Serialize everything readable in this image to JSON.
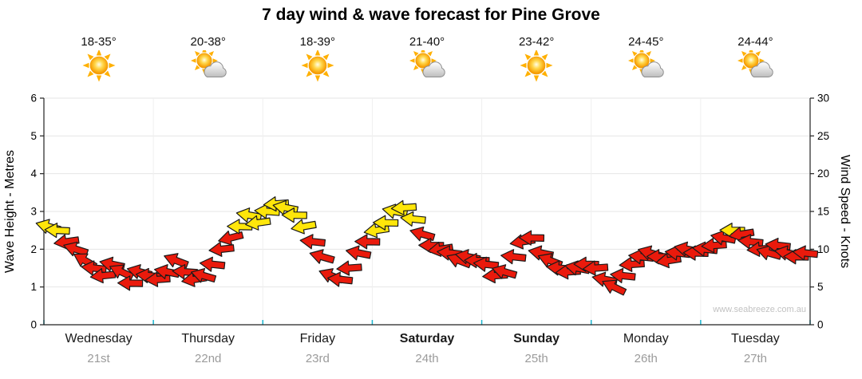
{
  "watermark": "www.seabreeze.com.au",
  "chart_data": {
    "type": "wind-arrow-timeseries",
    "title": "7 day wind & wave forecast for Pine Grove",
    "days": [
      {
        "name": "Wednesday",
        "date": "21st",
        "temp_range": "18-35°",
        "icon": "sunny",
        "bold": false
      },
      {
        "name": "Thursday",
        "date": "22nd",
        "temp_range": "20-38°",
        "icon": "partly-cloudy",
        "bold": false
      },
      {
        "name": "Friday",
        "date": "23rd",
        "temp_range": "18-39°",
        "icon": "sunny",
        "bold": false
      },
      {
        "name": "Saturday",
        "date": "24th",
        "temp_range": "21-40°",
        "icon": "partly-cloudy",
        "bold": true
      },
      {
        "name": "Sunday",
        "date": "25th",
        "temp_range": "23-42°",
        "icon": "sunny",
        "bold": true
      },
      {
        "name": "Monday",
        "date": "26th",
        "temp_range": "24-45°",
        "icon": "partly-cloudy",
        "bold": false
      },
      {
        "name": "Tuesday",
        "date": "27th",
        "temp_range": "24-44°",
        "icon": "partly-cloudy",
        "bold": false
      }
    ],
    "points_per_day": 12,
    "wind_speed_knots": [
      13,
      12.5,
      11,
      10,
      8.5,
      7.5,
      6.5,
      8,
      7,
      5.5,
      7,
      6.5,
      6,
      7,
      8.5,
      7,
      6,
      6.5,
      8,
      10,
      11.5,
      13,
      14.5,
      13.5,
      15,
      16,
      15.5,
      14.5,
      13,
      11,
      9,
      6.5,
      6,
      7.5,
      9.5,
      11,
      12.5,
      13.5,
      15,
      15.5,
      14,
      12,
      10.5,
      10,
      9.5,
      8.5,
      9,
      8.5,
      8,
      6.5,
      7,
      9,
      11,
      11.5,
      9.5,
      8.5,
      7.5,
      7,
      7.5,
      8,
      7.5,
      6,
      5,
      6.5,
      8,
      9,
      9.5,
      9,
      8.5,
      9.5,
      10,
      9.5,
      10,
      10.5,
      11.5,
      12.5,
      12,
      11,
      10,
      9.5,
      10.5,
      9.5,
      9,
      9.5
    ],
    "arrow_rotation_deg": [
      195,
      183,
      172,
      198,
      210,
      186,
      174,
      192,
      205,
      181,
      194,
      186,
      176,
      191,
      201,
      184,
      171,
      196,
      186,
      174,
      166,
      181,
      190,
      172,
      184,
      176,
      191,
      181,
      170,
      186,
      196,
      201,
      186,
      176,
      191,
      181,
      171,
      181,
      191,
      176,
      186,
      196,
      181,
      171,
      186,
      201,
      191,
      181,
      186,
      176,
      196,
      186,
      171,
      181,
      191,
      201,
      186,
      176,
      191,
      181,
      176,
      191,
      206,
      186,
      176,
      186,
      196,
      181,
      171,
      186,
      191,
      181,
      186,
      176,
      191,
      181,
      171,
      186,
      176,
      196,
      186,
      191,
      181,
      186
    ],
    "left_axis": {
      "label": "Wave Height - Metres",
      "min": 0,
      "max": 6,
      "ticks": [
        0,
        1,
        2,
        3,
        4,
        5,
        6
      ]
    },
    "right_axis": {
      "label": "Wind Speed - Knots",
      "min": 0,
      "max": 30,
      "ticks": [
        0,
        5,
        10,
        15,
        20,
        25,
        30
      ]
    },
    "arrow_colors": {
      "strong": "#ffe60a",
      "moderate": "#ea1a0c",
      "outline": "#1a1a1a",
      "strong_threshold_knots": 12.5
    },
    "grid": {
      "axis_color": "#222222",
      "grid_color": "#e6e6e6",
      "day_tick_color": "#19b5cf"
    }
  }
}
